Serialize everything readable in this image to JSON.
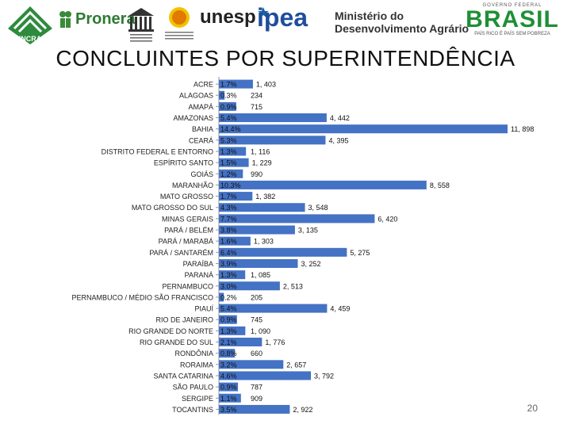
{
  "logos": {
    "incra": "INCRA",
    "pronera": "Pronera",
    "unesp": "unesp",
    "ipea": "ipea",
    "ministerio_line1": "Ministério do",
    "ministerio_line2": "Desenvolvimento Agrário",
    "brasil_top": "GOVERNO FEDERAL",
    "brasil": "BRASIL",
    "brasil_bottom": "PAÍS RICO É PAÍS SEM POBREZA"
  },
  "page_number": "20",
  "chart_data": {
    "type": "bar",
    "orientation": "horizontal",
    "title": "CONCLUINTES POR SUPERINTENDÊNCIA",
    "categories": [
      "ACRE",
      "ALAGOAS",
      "AMAPÁ",
      "AMAZONAS",
      "BAHIA",
      "CEARÁ",
      "DISTRITO FEDERAL E ENTORNO",
      "ESPÍRITO SANTO",
      "GOIÁS",
      "MARANHÃO",
      "MATO GROSSO",
      "MATO GROSSO DO SUL",
      "MINAS GERAIS",
      "PARÁ / BELÉM",
      "PARÁ / MARABÁ",
      "PARÁ / SANTARÉM",
      "PARAÍBA",
      "PARANÁ",
      "PERNAMBUCO",
      "PERNAMBUCO / MÉDIO SÃO FRANCISCO",
      "PIAUÍ",
      "RIO DE JANEIRO",
      "RIO GRANDE DO NORTE",
      "RIO GRANDE DO SUL",
      "RONDÔNIA",
      "RORAIMA",
      "SANTA CATARINA",
      "SÃO PAULO",
      "SERGIPE",
      "TOCANTINS"
    ],
    "values": [
      1403,
      234,
      715,
      4442,
      11898,
      4395,
      1116,
      1229,
      990,
      8558,
      1382,
      3548,
      6420,
      3135,
      1303,
      5275,
      3252,
      1085,
      2513,
      205,
      4459,
      745,
      1090,
      1776,
      660,
      2657,
      3792,
      787,
      909,
      2922
    ],
    "value_labels": [
      "1, 403",
      "234",
      "715",
      "4, 442",
      "11, 898",
      "4, 395",
      "1, 116",
      "1, 229",
      "990",
      "8, 558",
      "1, 382",
      "3, 548",
      "6, 420",
      "3, 135",
      "1, 303",
      "5, 275",
      "3, 252",
      "1, 085",
      "2, 513",
      "205",
      "4, 459",
      "745",
      "1, 090",
      "1, 776",
      "660",
      "2, 657",
      "3, 792",
      "787",
      "909",
      "2, 922"
    ],
    "percentages": [
      "1.7%",
      "0.3%",
      "0.9%",
      "5.4%",
      "14.4%",
      "5.3%",
      "1.3%",
      "1.5%",
      "1.2%",
      "10.3%",
      "1.7%",
      "4.3%",
      "7.7%",
      "3.8%",
      "1.6%",
      "6.4%",
      "3.9%",
      "1.3%",
      "3.0%",
      "0.2%",
      "5.4%",
      "0.9%",
      "1.3%",
      "2.1%",
      "0.8%",
      "3.2%",
      "4.6%",
      "0.9%",
      "1.1%",
      "3.5%"
    ],
    "bar_color": "#4472C4",
    "xlim": [
      0,
      11898
    ]
  }
}
